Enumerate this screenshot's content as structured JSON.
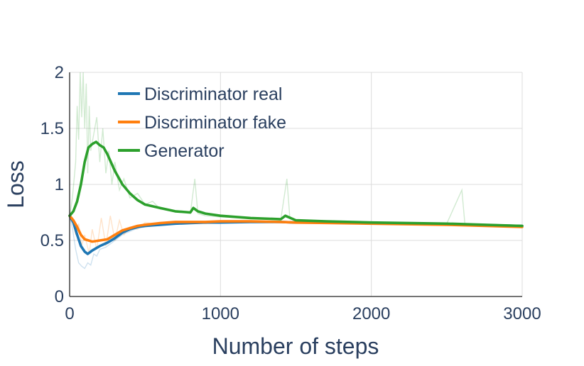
{
  "chart_data": {
    "type": "line",
    "title": "",
    "xlabel": "Number of steps",
    "ylabel": "Loss",
    "xlim": [
      0,
      3000
    ],
    "ylim": [
      0,
      2
    ],
    "xticks": [
      0,
      1000,
      2000,
      3000
    ],
    "yticks": [
      0,
      0.5,
      1,
      1.5,
      2
    ],
    "xtick_labels": [
      "0",
      "1000",
      "2000",
      "3000"
    ],
    "ytick_labels": [
      "0",
      "0.5",
      "1",
      "1.5",
      "2"
    ],
    "grid": true,
    "legend_position": "top-left",
    "series": [
      {
        "name": "Discriminator real",
        "color": "#1f77b4",
        "smoothed": [
          [
            0,
            0.72
          ],
          [
            25,
            0.66
          ],
          [
            50,
            0.55
          ],
          [
            75,
            0.45
          ],
          [
            100,
            0.4
          ],
          [
            120,
            0.38
          ],
          [
            150,
            0.41
          ],
          [
            200,
            0.45
          ],
          [
            250,
            0.48
          ],
          [
            300,
            0.52
          ],
          [
            350,
            0.57
          ],
          [
            400,
            0.6
          ],
          [
            450,
            0.62
          ],
          [
            500,
            0.63
          ],
          [
            600,
            0.64
          ],
          [
            700,
            0.65
          ],
          [
            800,
            0.655
          ],
          [
            900,
            0.66
          ],
          [
            1000,
            0.66
          ],
          [
            1200,
            0.665
          ],
          [
            1400,
            0.665
          ],
          [
            1500,
            0.66
          ],
          [
            1600,
            0.66
          ],
          [
            2000,
            0.655
          ],
          [
            2500,
            0.645
          ],
          [
            3000,
            0.63
          ]
        ],
        "raw": [
          [
            0,
            0.72
          ],
          [
            20,
            0.6
          ],
          [
            40,
            0.42
          ],
          [
            60,
            0.3
          ],
          [
            80,
            0.27
          ],
          [
            100,
            0.25
          ],
          [
            120,
            0.3
          ],
          [
            140,
            0.28
          ],
          [
            160,
            0.38
          ],
          [
            180,
            0.36
          ],
          [
            200,
            0.42
          ],
          [
            240,
            0.44
          ],
          [
            280,
            0.48
          ],
          [
            320,
            0.52
          ],
          [
            360,
            0.56
          ],
          [
            400,
            0.58
          ],
          [
            450,
            0.61
          ],
          [
            500,
            0.62
          ],
          [
            600,
            0.64
          ],
          [
            700,
            0.65
          ],
          [
            800,
            0.66
          ],
          [
            900,
            0.66
          ],
          [
            1000,
            0.66
          ],
          [
            1200,
            0.67
          ],
          [
            1400,
            0.66
          ],
          [
            1500,
            0.66
          ],
          [
            2000,
            0.65
          ],
          [
            2500,
            0.64
          ],
          [
            3000,
            0.62
          ]
        ]
      },
      {
        "name": "Discriminator fake",
        "color": "#ff7f0e",
        "smoothed": [
          [
            0,
            0.72
          ],
          [
            25,
            0.68
          ],
          [
            50,
            0.62
          ],
          [
            75,
            0.55
          ],
          [
            100,
            0.51
          ],
          [
            150,
            0.49
          ],
          [
            200,
            0.5
          ],
          [
            250,
            0.51
          ],
          [
            300,
            0.55
          ],
          [
            350,
            0.59
          ],
          [
            400,
            0.61
          ],
          [
            450,
            0.63
          ],
          [
            500,
            0.64
          ],
          [
            600,
            0.655
          ],
          [
            700,
            0.665
          ],
          [
            800,
            0.665
          ],
          [
            900,
            0.665
          ],
          [
            1000,
            0.67
          ],
          [
            1200,
            0.67
          ],
          [
            1400,
            0.665
          ],
          [
            1500,
            0.66
          ],
          [
            2000,
            0.65
          ],
          [
            2500,
            0.64
          ],
          [
            3000,
            0.62
          ]
        ],
        "raw": [
          [
            0,
            0.72
          ],
          [
            20,
            0.7
          ],
          [
            40,
            0.55
          ],
          [
            60,
            0.65
          ],
          [
            80,
            0.45
          ],
          [
            100,
            0.55
          ],
          [
            130,
            0.38
          ],
          [
            150,
            0.6
          ],
          [
            180,
            0.42
          ],
          [
            210,
            0.7
          ],
          [
            240,
            0.45
          ],
          [
            270,
            0.72
          ],
          [
            300,
            0.5
          ],
          [
            330,
            0.68
          ],
          [
            360,
            0.55
          ],
          [
            400,
            0.62
          ],
          [
            450,
            0.6
          ],
          [
            500,
            0.66
          ],
          [
            600,
            0.64
          ],
          [
            700,
            0.66
          ],
          [
            800,
            0.67
          ],
          [
            900,
            0.65
          ],
          [
            1000,
            0.67
          ],
          [
            1200,
            0.67
          ],
          [
            1400,
            0.66
          ],
          [
            1500,
            0.65
          ],
          [
            2000,
            0.65
          ],
          [
            2500,
            0.64
          ],
          [
            3000,
            0.62
          ]
        ]
      },
      {
        "name": "Generator",
        "color": "#2ca02c",
        "smoothed": [
          [
            0,
            0.72
          ],
          [
            25,
            0.76
          ],
          [
            50,
            0.85
          ],
          [
            75,
            1.0
          ],
          [
            100,
            1.2
          ],
          [
            125,
            1.33
          ],
          [
            150,
            1.36
          ],
          [
            175,
            1.38
          ],
          [
            200,
            1.35
          ],
          [
            225,
            1.33
          ],
          [
            250,
            1.27
          ],
          [
            300,
            1.12
          ],
          [
            350,
            1.0
          ],
          [
            400,
            0.92
          ],
          [
            450,
            0.86
          ],
          [
            500,
            0.82
          ],
          [
            600,
            0.79
          ],
          [
            700,
            0.76
          ],
          [
            800,
            0.75
          ],
          [
            820,
            0.79
          ],
          [
            850,
            0.76
          ],
          [
            900,
            0.74
          ],
          [
            1000,
            0.72
          ],
          [
            1200,
            0.7
          ],
          [
            1400,
            0.69
          ],
          [
            1430,
            0.72
          ],
          [
            1500,
            0.68
          ],
          [
            1700,
            0.67
          ],
          [
            2000,
            0.66
          ],
          [
            2500,
            0.65
          ],
          [
            3000,
            0.63
          ]
        ],
        "raw": [
          [
            0,
            0.7
          ],
          [
            20,
            0.9
          ],
          [
            40,
            1.2
          ],
          [
            50,
            1.7
          ],
          [
            60,
            1.4
          ],
          [
            70,
            2.0
          ],
          [
            80,
            1.6
          ],
          [
            90,
            2.0
          ],
          [
            100,
            1.5
          ],
          [
            110,
            1.9
          ],
          [
            120,
            1.1
          ],
          [
            130,
            1.7
          ],
          [
            140,
            1.3
          ],
          [
            160,
            1.45
          ],
          [
            180,
            1.6
          ],
          [
            200,
            1.2
          ],
          [
            220,
            1.5
          ],
          [
            240,
            1.1
          ],
          [
            260,
            1.3
          ],
          [
            280,
            1.0
          ],
          [
            300,
            1.2
          ],
          [
            330,
            0.95
          ],
          [
            360,
            1.05
          ],
          [
            400,
            0.88
          ],
          [
            450,
            0.92
          ],
          [
            500,
            0.82
          ],
          [
            550,
            0.85
          ],
          [
            600,
            0.78
          ],
          [
            700,
            0.76
          ],
          [
            800,
            0.74
          ],
          [
            830,
            1.05
          ],
          [
            850,
            0.74
          ],
          [
            900,
            0.72
          ],
          [
            1000,
            0.71
          ],
          [
            1200,
            0.7
          ],
          [
            1400,
            0.69
          ],
          [
            1440,
            1.05
          ],
          [
            1460,
            0.7
          ],
          [
            1500,
            0.68
          ],
          [
            2000,
            0.66
          ],
          [
            2500,
            0.65
          ],
          [
            2600,
            0.95
          ],
          [
            2620,
            0.65
          ],
          [
            3000,
            0.63
          ]
        ]
      }
    ]
  }
}
